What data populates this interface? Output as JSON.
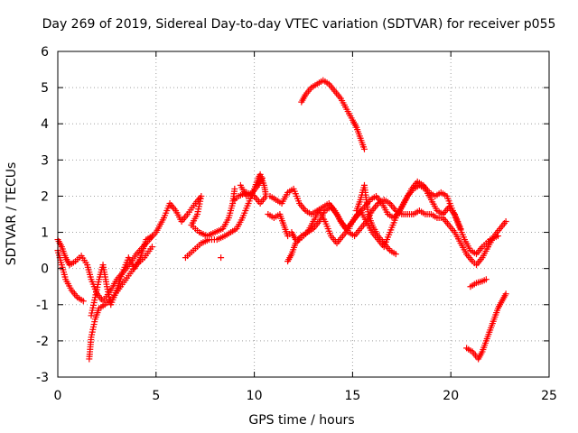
{
  "chart_data": {
    "type": "scatter",
    "title": "Day 269 of 2019, Sidereal Day-to-day VTEC variation (SDTVAR) for receiver p055",
    "xlabel": "GPS time / hours",
    "ylabel": "SDTVAR / TECUs",
    "xlim": [
      0,
      25
    ],
    "ylim": [
      -3,
      6
    ],
    "xticks": [
      0,
      5,
      10,
      15,
      20,
      25
    ],
    "yticks": [
      -3,
      -2,
      -1,
      0,
      1,
      2,
      3,
      4,
      5,
      6
    ],
    "grid": true,
    "marker": "+",
    "series": [
      {
        "name": "SDTVAR",
        "color": "#ff0000",
        "tracks": [
          [
            [
              0.0,
              0.8
            ],
            [
              0.2,
              0.6
            ],
            [
              0.4,
              0.3
            ],
            [
              0.6,
              0.1
            ],
            [
              0.9,
              0.2
            ],
            [
              1.2,
              0.35
            ],
            [
              1.5,
              0.1
            ],
            [
              1.7,
              -0.3
            ],
            [
              2.0,
              -0.7
            ],
            [
              2.3,
              -0.9
            ],
            [
              2.7,
              -0.6
            ],
            [
              3.0,
              -0.3
            ],
            [
              3.5,
              0.0
            ],
            [
              4.0,
              0.4
            ],
            [
              4.5,
              0.7
            ],
            [
              5.0,
              1.0
            ],
            [
              5.4,
              1.4
            ],
            [
              5.7,
              1.8
            ],
            [
              6.0,
              1.6
            ],
            [
              6.3,
              1.3
            ],
            [
              6.6,
              1.5
            ],
            [
              7.0,
              1.8
            ],
            [
              7.3,
              2.0
            ],
            [
              7.1,
              1.5
            ],
            [
              6.8,
              1.2
            ],
            [
              7.2,
              1.0
            ],
            [
              7.6,
              0.9
            ],
            [
              8.0,
              1.0
            ],
            [
              8.4,
              1.1
            ],
            [
              8.7,
              1.4
            ],
            [
              8.9,
              1.8
            ],
            [
              9.0,
              2.2
            ]
          ],
          [
            [
              0.0,
              0.5
            ],
            [
              0.2,
              0.1
            ],
            [
              0.4,
              -0.3
            ],
            [
              0.7,
              -0.6
            ],
            [
              1.0,
              -0.8
            ],
            [
              1.3,
              -0.9
            ]
          ],
          [
            [
              1.6,
              -2.5
            ],
            [
              1.7,
              -1.9
            ],
            [
              1.9,
              -1.4
            ],
            [
              2.1,
              -1.1
            ],
            [
              2.4,
              -1.0
            ],
            [
              2.8,
              -0.8
            ],
            [
              3.2,
              -0.5
            ],
            [
              3.6,
              -0.2
            ],
            [
              4.0,
              0.1
            ],
            [
              4.4,
              0.3
            ],
            [
              4.8,
              0.6
            ]
          ],
          [
            [
              1.7,
              -1.3
            ],
            [
              1.9,
              -0.8
            ],
            [
              2.1,
              -0.3
            ],
            [
              2.3,
              0.1
            ],
            [
              2.5,
              -0.5
            ],
            [
              2.7,
              -1.0
            ],
            [
              3.0,
              -0.6
            ],
            [
              3.3,
              -0.1
            ],
            [
              3.6,
              0.3
            ],
            [
              3.9,
              0.0
            ],
            [
              4.2,
              0.3
            ],
            [
              4.5,
              0.8
            ],
            [
              4.8,
              0.9
            ]
          ],
          [
            [
              6.5,
              0.3
            ],
            [
              6.9,
              0.5
            ],
            [
              7.3,
              0.7
            ],
            [
              7.7,
              0.8
            ],
            [
              8.1,
              0.8
            ],
            [
              8.5,
              0.9
            ],
            [
              8.8,
              1.0
            ],
            [
              9.1,
              1.1
            ],
            [
              9.4,
              1.4
            ],
            [
              9.7,
              1.8
            ],
            [
              10.0,
              2.2
            ],
            [
              10.2,
              2.5
            ],
            [
              10.3,
              2.6
            ],
            [
              10.5,
              2.3
            ],
            [
              10.6,
              2.0
            ],
            [
              10.3,
              1.8
            ],
            [
              10.0,
              2.0
            ],
            [
              9.6,
              2.1
            ],
            [
              9.2,
              2.0
            ],
            [
              9.0,
              1.9
            ]
          ],
          [
            [
              9.3,
              2.3
            ],
            [
              9.6,
              2.0
            ],
            [
              9.9,
              2.1
            ],
            [
              10.2,
              2.3
            ],
            [
              10.4,
              2.5
            ]
          ],
          [
            [
              10.7,
              1.5
            ],
            [
              11.0,
              1.4
            ],
            [
              11.3,
              1.5
            ],
            [
              11.5,
              1.2
            ],
            [
              11.7,
              0.9
            ],
            [
              11.9,
              1.0
            ],
            [
              12.1,
              0.8
            ],
            [
              12.3,
              0.8
            ],
            [
              12.5,
              0.9
            ],
            [
              12.7,
              1.0
            ],
            [
              13.0,
              1.1
            ],
            [
              13.3,
              1.3
            ],
            [
              13.6,
              1.6
            ],
            [
              13.9,
              1.7
            ],
            [
              14.2,
              1.5
            ],
            [
              14.5,
              1.2
            ],
            [
              14.8,
              1.0
            ],
            [
              15.1,
              0.9
            ],
            [
              15.4,
              1.1
            ],
            [
              15.7,
              1.3
            ],
            [
              16.0,
              1.6
            ],
            [
              16.3,
              1.8
            ],
            [
              16.6,
              1.9
            ],
            [
              16.9,
              1.8
            ],
            [
              17.2,
              1.6
            ],
            [
              17.5,
              1.5
            ],
            [
              17.8,
              1.5
            ],
            [
              18.1,
              1.5
            ],
            [
              18.4,
              1.6
            ],
            [
              18.7,
              1.5
            ],
            [
              19.0,
              1.5
            ],
            [
              19.3,
              1.4
            ],
            [
              19.6,
              1.4
            ],
            [
              19.9,
              1.2
            ],
            [
              20.2,
              1.0
            ],
            [
              20.5,
              0.7
            ],
            [
              20.8,
              0.4
            ],
            [
              21.1,
              0.2
            ],
            [
              21.3,
              0.1
            ],
            [
              21.6,
              0.3
            ],
            [
              21.9,
              0.6
            ],
            [
              22.2,
              0.9
            ],
            [
              22.5,
              1.1
            ],
            [
              22.8,
              1.3
            ]
          ],
          [
            [
              10.8,
              2.0
            ],
            [
              11.1,
              1.9
            ],
            [
              11.4,
              1.8
            ],
            [
              11.7,
              2.1
            ],
            [
              12.0,
              2.2
            ],
            [
              12.3,
              1.8
            ],
            [
              12.6,
              1.6
            ],
            [
              12.9,
              1.5
            ],
            [
              13.2,
              1.6
            ],
            [
              13.5,
              1.7
            ],
            [
              13.8,
              1.8
            ],
            [
              14.1,
              1.6
            ],
            [
              14.4,
              1.3
            ],
            [
              14.7,
              1.1
            ],
            [
              15.0,
              1.3
            ],
            [
              15.3,
              1.5
            ],
            [
              15.6,
              1.7
            ],
            [
              15.9,
              1.9
            ],
            [
              16.2,
              2.0
            ],
            [
              16.5,
              1.8
            ],
            [
              16.8,
              1.5
            ],
            [
              17.1,
              1.4
            ],
            [
              17.4,
              1.6
            ],
            [
              17.7,
              1.9
            ],
            [
              18.0,
              2.2
            ],
            [
              18.3,
              2.4
            ],
            [
              18.6,
              2.3
            ],
            [
              18.9,
              2.1
            ],
            [
              19.2,
              2.0
            ],
            [
              19.5,
              2.1
            ],
            [
              19.8,
              2.0
            ],
            [
              20.1,
              1.6
            ],
            [
              20.4,
              1.2
            ],
            [
              20.7,
              0.8
            ],
            [
              21.0,
              0.5
            ],
            [
              21.3,
              0.4
            ],
            [
              21.6,
              0.6
            ],
            [
              22.0,
              0.8
            ],
            [
              22.4,
              0.9
            ]
          ],
          [
            [
              11.7,
              0.2
            ],
            [
              11.9,
              0.4
            ],
            [
              12.1,
              0.7
            ],
            [
              12.4,
              0.9
            ],
            [
              12.7,
              1.0
            ],
            [
              13.0,
              1.3
            ],
            [
              13.3,
              1.6
            ],
            [
              13.6,
              1.3
            ],
            [
              13.9,
              0.9
            ],
            [
              14.2,
              0.7
            ],
            [
              14.5,
              0.9
            ],
            [
              14.8,
              1.1
            ],
            [
              15.1,
              1.4
            ],
            [
              15.4,
              1.6
            ],
            [
              15.7,
              1.3
            ],
            [
              16.0,
              1.0
            ],
            [
              16.3,
              0.8
            ],
            [
              16.6,
              0.6
            ],
            [
              16.9,
              1.0
            ],
            [
              17.2,
              1.4
            ],
            [
              17.5,
              1.7
            ],
            [
              17.8,
              2.0
            ],
            [
              18.1,
              2.2
            ],
            [
              18.4,
              2.3
            ],
            [
              18.7,
              2.2
            ],
            [
              19.0,
              1.9
            ],
            [
              19.3,
              1.6
            ],
            [
              19.6,
              1.5
            ],
            [
              19.9,
              1.7
            ],
            [
              20.2,
              1.5
            ],
            [
              20.5,
              1.1
            ]
          ],
          [
            [
              12.4,
              4.6
            ],
            [
              12.6,
              4.8
            ],
            [
              12.9,
              5.0
            ],
            [
              13.2,
              5.1
            ],
            [
              13.5,
              5.2
            ],
            [
              13.8,
              5.1
            ],
            [
              14.1,
              4.9
            ],
            [
              14.4,
              4.7
            ],
            [
              14.7,
              4.4
            ],
            [
              15.0,
              4.1
            ],
            [
              15.2,
              3.9
            ],
            [
              15.4,
              3.6
            ],
            [
              15.6,
              3.3
            ]
          ],
          [
            [
              15.2,
              1.6
            ],
            [
              15.4,
              1.9
            ],
            [
              15.6,
              2.3
            ],
            [
              15.7,
              1.9
            ],
            [
              15.8,
              1.5
            ],
            [
              16.0,
              1.2
            ],
            [
              16.3,
              0.9
            ],
            [
              16.6,
              0.7
            ],
            [
              16.9,
              0.5
            ],
            [
              17.2,
              0.4
            ]
          ],
          [
            [
              20.8,
              -2.2
            ],
            [
              21.1,
              -2.3
            ],
            [
              21.4,
              -2.5
            ],
            [
              21.6,
              -2.3
            ],
            [
              21.8,
              -2.0
            ],
            [
              22.0,
              -1.7
            ],
            [
              22.2,
              -1.4
            ],
            [
              22.4,
              -1.1
            ],
            [
              22.6,
              -0.9
            ],
            [
              22.8,
              -0.7
            ]
          ],
          [
            [
              21.0,
              -0.5
            ],
            [
              21.3,
              -0.4
            ],
            [
              21.6,
              -0.35
            ],
            [
              21.8,
              -0.3
            ]
          ],
          [
            [
              8.3,
              0.3
            ]
          ]
        ]
      }
    ]
  }
}
